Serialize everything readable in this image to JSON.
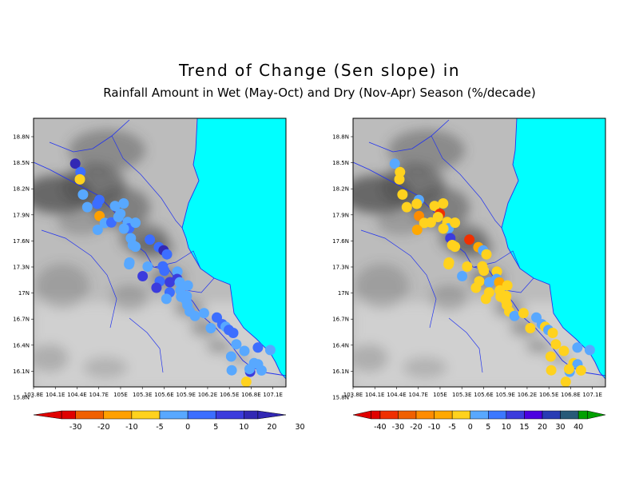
{
  "title": "Trend of Change (Sen slope) in",
  "subtitle": "Rainfall Amount in Wet (May-Oct) and Dry (Nov-Apr) Season (%/decade)",
  "colors": {
    "sea": "#00ffff",
    "boundary": "#2233ee"
  },
  "axes": {
    "xticks": [
      "103.8E",
      "104.1E",
      "104.4E",
      "104.7E",
      "105E",
      "105.3E",
      "105.6E",
      "105.9E",
      "106.2E",
      "106.5E",
      "106.8E",
      "107.1E"
    ],
    "yticks": [
      "18.8N",
      "18.5N",
      "18.2N",
      "17.9N",
      "17.6N",
      "17.3N",
      "17N",
      "16.7N",
      "16.4N",
      "16.1N",
      "15.8N"
    ]
  },
  "panels": [
    {
      "name": "wet-season",
      "colorbar": {
        "labels": [
          "-30",
          "-20",
          "-10",
          "-5",
          "0",
          "5",
          "10",
          "20",
          "30"
        ],
        "colors": [
          "#e00000",
          "#f06000",
          "#ffa000",
          "#ffd21e",
          "#58a8ff",
          "#3c6eff",
          "#3c3cdd",
          "#3228b4"
        ]
      },
      "stations": [
        [
          0.3,
          0.836,
          7
        ],
        [
          0.58,
          0.79,
          5
        ],
        [
          0.72,
          0.675,
          3
        ],
        [
          1.54,
          0.655,
          5
        ],
        [
          1.58,
          0.57,
          5
        ],
        [
          1.1,
          0.5,
          4
        ],
        [
          1.45,
          0.38,
          4
        ],
        [
          1.88,
          0.425,
          2
        ],
        [
          2.13,
          0.4,
          4
        ],
        [
          2.25,
          0.5,
          5
        ],
        [
          2.13,
          0.2,
          4
        ],
        [
          2.1,
          0.95,
          4
        ],
        [
          1.98,
          0.79,
          4
        ],
        [
          2.25,
          0.755,
          4
        ],
        [
          2.28,
          0.68,
          4
        ],
        [
          2.57,
          0.74,
          4
        ],
        [
          2.73,
          0.67,
          5
        ],
        [
          2.63,
          0.59,
          4
        ],
        [
          2.74,
          0.84,
          4
        ],
        [
          2.97,
          0.55,
          4
        ],
        [
          3.15,
          0.48,
          4
        ],
        [
          3.24,
          0.495,
          4
        ],
        [
          3.45,
          0.18,
          4
        ],
        [
          3.38,
          0.8,
          5
        ],
        [
          3.48,
          0.15,
          4
        ],
        [
          3.72,
          0.82,
          5
        ],
        [
          3.88,
          0.84,
          7
        ],
        [
          3.9,
          0.38,
          4
        ],
        [
          4.0,
          0.17,
          6
        ],
        [
          4.03,
          0.83,
          5
        ],
        [
          4.2,
          0.6,
          5
        ],
        [
          4.32,
          0.56,
          5
        ],
        [
          4.45,
          0.34,
          5
        ],
        [
          4.52,
          0.2,
          6
        ],
        [
          4.6,
          0.73,
          4
        ],
        [
          4.75,
          0.62,
          6
        ],
        [
          4.67,
          0.47,
          6
        ],
        [
          4.87,
          0.61,
          4
        ],
        [
          4.88,
          0.32,
          5
        ],
        [
          4.95,
          0.18,
          4
        ],
        [
          5.1,
          0.68,
          4
        ],
        [
          5.05,
          0.5,
          4
        ],
        [
          5.2,
          0.42,
          4
        ],
        [
          5.3,
          0.51,
          4
        ],
        [
          5.38,
          0.44,
          4
        ],
        [
          5.5,
          0.39,
          4
        ],
        [
          5.68,
          0.33,
          4
        ],
        [
          5.88,
          0.34,
          4
        ],
        [
          6.0,
          0.51,
          4
        ],
        [
          6.35,
          0.63,
          5
        ],
        [
          6.45,
          0.39,
          4
        ],
        [
          6.6,
          0.61,
          5
        ],
        [
          6.72,
          0.62,
          4
        ],
        [
          6.85,
          0.62,
          5
        ],
        [
          7.0,
          0.64,
          5
        ],
        [
          7.3,
          0.52,
          4
        ],
        [
          7.45,
          0.27,
          4
        ],
        [
          7.6,
          0.54,
          4
        ],
        [
          7.75,
          0.08,
          4
        ],
        [
          7.8,
          0.78,
          5
        ],
        [
          8.05,
          0.5,
          4
        ],
        [
          8.15,
          0.54,
          4
        ],
        [
          8.15,
          0.32,
          6
        ],
        [
          8.1,
          0.92,
          4
        ],
        [
          8.35,
          0.5,
          4
        ],
        [
          8.28,
          0.12,
          3
        ],
        [
          8.08,
          0.35,
          4
        ]
      ]
    },
    {
      "name": "dry-season",
      "colorbar": {
        "labels": [
          "-40",
          "-30",
          "-20",
          "-10",
          "-5",
          "0",
          "5",
          "10",
          "15",
          "20",
          "30",
          "40"
        ],
        "colors": [
          "#e00000",
          "#f03000",
          "#f06000",
          "#ff8c00",
          "#ffa800",
          "#ffd21e",
          "#58a8ff",
          "#3c78ff",
          "#3c3cdd",
          "#4b00e0",
          "#283cb4",
          "#285a78",
          "#00a000"
        ]
      },
      "stations": [
        [
          0.3,
          0.836,
          6
        ],
        [
          0.58,
          0.79,
          5
        ],
        [
          0.72,
          0.675,
          5
        ],
        [
          1.54,
          0.655,
          6
        ],
        [
          1.58,
          0.57,
          5
        ],
        [
          1.1,
          0.5,
          5
        ],
        [
          1.45,
          0.38,
          5
        ],
        [
          1.88,
          0.425,
          3
        ],
        [
          2.13,
          0.4,
          5
        ],
        [
          2.25,
          0.5,
          5
        ],
        [
          2.13,
          0.2,
          4
        ],
        [
          2.1,
          0.95,
          5
        ],
        [
          1.98,
          0.79,
          5
        ],
        [
          2.25,
          0.755,
          1
        ],
        [
          2.28,
          0.68,
          5
        ],
        [
          2.57,
          0.74,
          5
        ],
        [
          2.73,
          0.67,
          6
        ],
        [
          2.63,
          0.59,
          5
        ],
        [
          2.74,
          0.84,
          5
        ],
        [
          2.97,
          0.55,
          8
        ],
        [
          3.15,
          0.48,
          5
        ],
        [
          3.24,
          0.495,
          5
        ],
        [
          3.45,
          0.18,
          5
        ],
        [
          3.38,
          0.8,
          1
        ],
        [
          3.48,
          0.15,
          5
        ],
        [
          3.72,
          0.82,
          4
        ],
        [
          3.88,
          0.84,
          6
        ],
        [
          3.9,
          0.38,
          5
        ],
        [
          4.0,
          0.17,
          6
        ],
        [
          4.03,
          0.83,
          5
        ],
        [
          4.2,
          0.6,
          5
        ],
        [
          4.32,
          0.56,
          5
        ],
        [
          4.45,
          0.34,
          5
        ],
        [
          4.52,
          0.2,
          5
        ],
        [
          4.6,
          0.73,
          5
        ],
        [
          4.75,
          0.62,
          6
        ],
        [
          4.67,
          0.47,
          6
        ],
        [
          4.87,
          0.61,
          4
        ],
        [
          4.88,
          0.32,
          5
        ],
        [
          4.95,
          0.18,
          5
        ],
        [
          5.1,
          0.68,
          5
        ],
        [
          5.05,
          0.5,
          5
        ],
        [
          5.2,
          0.42,
          5
        ],
        [
          5.3,
          0.51,
          5
        ],
        [
          5.38,
          0.44,
          5
        ],
        [
          5.5,
          0.39,
          5
        ],
        [
          5.68,
          0.33,
          5
        ],
        [
          5.88,
          0.34,
          6
        ],
        [
          6.0,
          0.51,
          5
        ],
        [
          6.35,
          0.63,
          6
        ],
        [
          6.45,
          0.39,
          5
        ],
        [
          6.6,
          0.61,
          6
        ],
        [
          6.72,
          0.62,
          5
        ],
        [
          6.85,
          0.62,
          6
        ],
        [
          7.0,
          0.64,
          5
        ],
        [
          7.3,
          0.52,
          5
        ],
        [
          7.45,
          0.27,
          5
        ],
        [
          7.6,
          0.54,
          5
        ],
        [
          7.75,
          0.08,
          5
        ],
        [
          7.8,
          0.78,
          6
        ],
        [
          8.05,
          0.5,
          5
        ],
        [
          8.15,
          0.54,
          6
        ],
        [
          8.15,
          0.32,
          6
        ],
        [
          8.1,
          0.92,
          6
        ],
        [
          8.35,
          0.5,
          5
        ],
        [
          8.28,
          0.12,
          5
        ],
        [
          8.08,
          0.35,
          5
        ]
      ]
    }
  ]
}
